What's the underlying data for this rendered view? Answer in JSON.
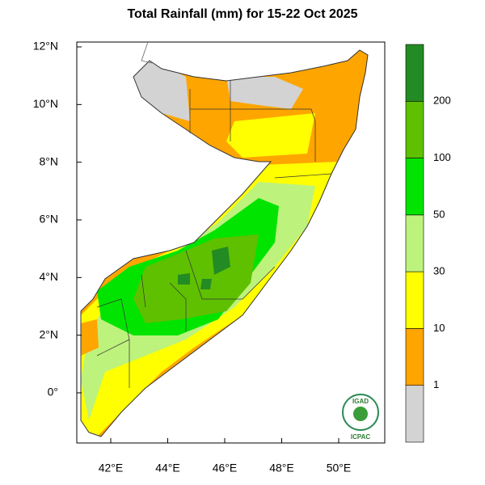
{
  "title": "Total Rainfall (mm) for 15-22 Oct 2025",
  "lat_labels": [
    "12°N",
    "10°N",
    "8°N",
    "6°N",
    "4°N",
    "2°N",
    "0°"
  ],
  "lon_labels": [
    "42°E",
    "44°E",
    "46°E",
    "48°E",
    "50°E"
  ],
  "legend": {
    "levels": [
      1,
      10,
      30,
      50,
      100,
      200
    ],
    "colors": [
      "#d3d3d3",
      "#ffa500",
      "#ffff00",
      "#bdf27d",
      "#00e400",
      "#5fc000",
      "#238b23"
    ]
  },
  "logo": {
    "top": "IGAD",
    "bottom": "ICPAC"
  }
}
